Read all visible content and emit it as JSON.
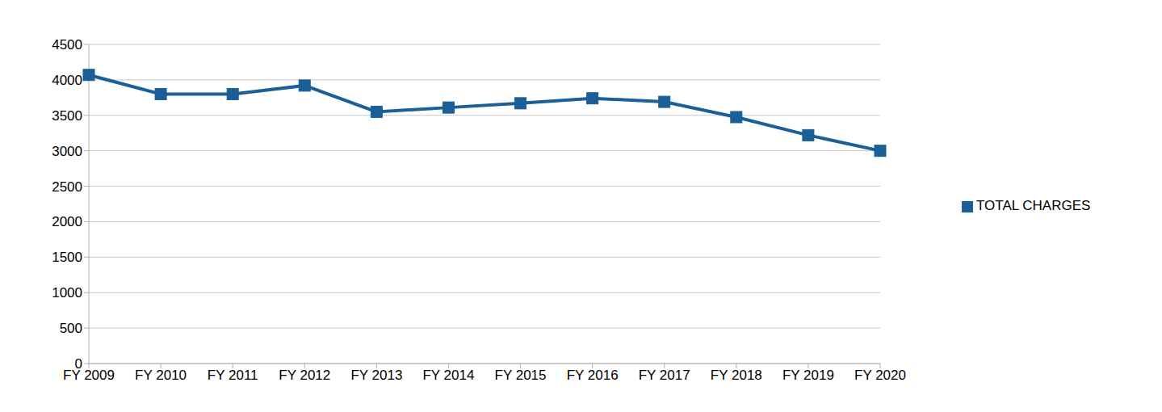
{
  "chart_data": {
    "type": "line",
    "categories": [
      "FY 2009",
      "FY 2010",
      "FY 2011",
      "FY 2012",
      "FY 2013",
      "FY 2014",
      "FY 2015",
      "FY 2016",
      "FY 2017",
      "FY 2018",
      "FY 2019",
      "FY 2020"
    ],
    "series": [
      {
        "name": "TOTAL CHARGES",
        "color": "#1a5f97",
        "marker": "square",
        "values": [
          4070,
          3800,
          3800,
          3920,
          3550,
          3610,
          3670,
          3740,
          3690,
          3475,
          3220,
          3000
        ]
      }
    ],
    "ylim": [
      0,
      4500
    ],
    "yticks": [
      0,
      500,
      1000,
      1500,
      2000,
      2500,
      3000,
      3500,
      4000,
      4500
    ],
    "grid": true,
    "legend": "right"
  }
}
